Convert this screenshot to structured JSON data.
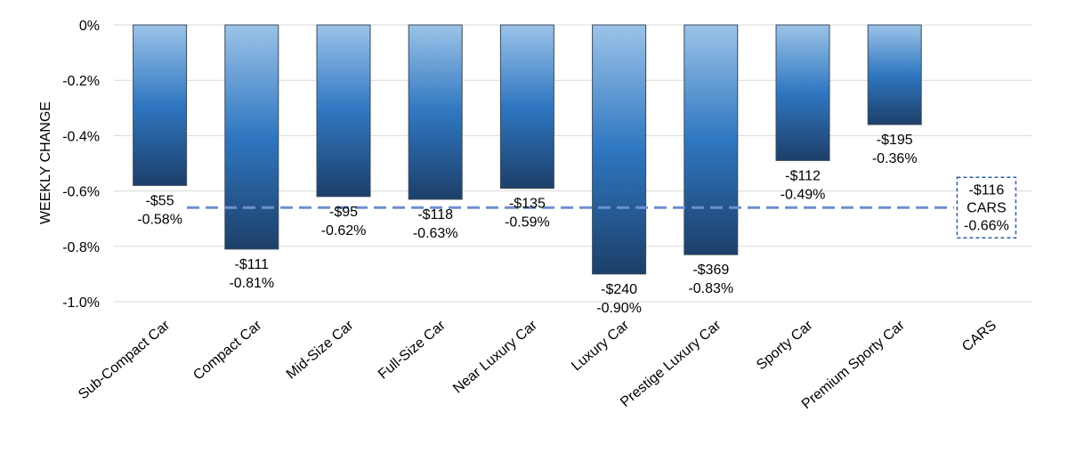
{
  "chart_data": {
    "type": "bar",
    "ylabel": "WEEKLY CHANGE",
    "ylim": [
      -1.0,
      0
    ],
    "yticks": [
      0,
      -0.2,
      -0.4,
      -0.6,
      -0.8,
      -1.0
    ],
    "ytick_labels": [
      "0%",
      "-0.2%",
      "-0.4%",
      "-0.6%",
      "-0.8%",
      "-1.0%"
    ],
    "grid": true,
    "categories": [
      "Sub-Compact Car",
      "Compact Car",
      "Mid-Size Car",
      "Full-Size Car",
      "Near Luxury Car",
      "Luxury Car",
      "Prestige Luxury Car",
      "Sporty Car",
      "Premium Sporty Car",
      "CARS"
    ],
    "values": [
      -0.58,
      -0.81,
      -0.62,
      -0.63,
      -0.59,
      -0.9,
      -0.83,
      -0.49,
      -0.36,
      null
    ],
    "dollar_labels": [
      "-$55",
      "-$111",
      "-$95",
      "-$118",
      "-$135",
      "-$240",
      "-$369",
      "-$112",
      "-$195",
      "-$116"
    ],
    "percent_labels": [
      "-0.58%",
      "-0.81%",
      "-0.62%",
      "-0.63%",
      "-0.59%",
      "-0.90%",
      "-0.83%",
      "-0.49%",
      "-0.36%",
      "-0.66%"
    ],
    "reference_line": {
      "value": -0.66,
      "label_lines": [
        "-$116",
        "CARS",
        "-0.66%"
      ]
    },
    "colors": {
      "bar_top": "#9cc3e8",
      "bar_mid": "#2f77c1",
      "bar_bottom": "#1d3f69",
      "reference_line": "#6f8fd0",
      "grid": "#d9d9d9"
    }
  }
}
